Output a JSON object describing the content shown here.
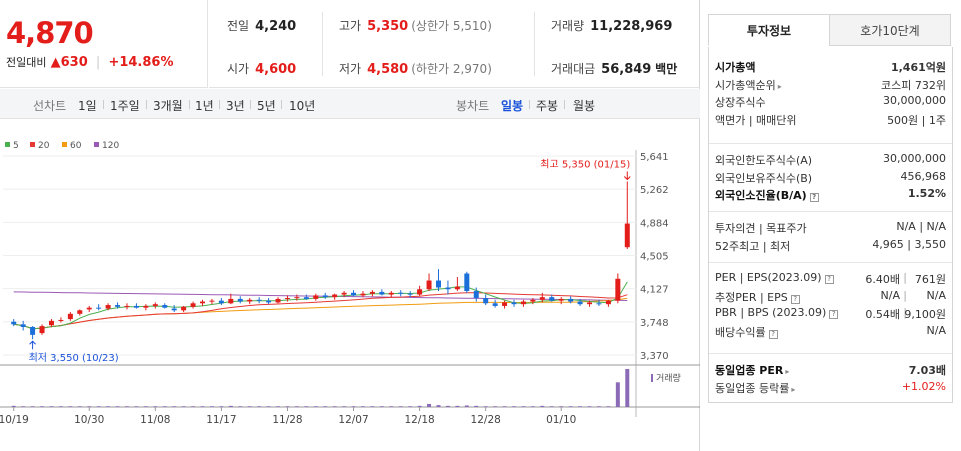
{
  "price": {
    "current": "4,870",
    "change_label": "전일대비",
    "change_arrow": "▲",
    "change_value": "630",
    "change_pct": "+14.86%"
  },
  "stats": {
    "prev_close_label": "전일",
    "prev_close": "4,240",
    "high_label": "고가",
    "high": "5,350",
    "upper_limit": "(상한가 5,510)",
    "volume_label": "거래량",
    "volume": "11,228,969",
    "open_label": "시가",
    "open": "4,600",
    "low_label": "저가",
    "low": "4,580",
    "lower_limit": "(하한가 2,970)",
    "turnover_label": "거래대금",
    "turnover": "56,849",
    "turnover_unit": "백만"
  },
  "toolbar": {
    "line_label": "선차트",
    "periods": [
      "1일",
      "1주일",
      "3개월",
      "1년",
      "3년",
      "5년",
      "10년"
    ],
    "candle_label": "봉차트",
    "candles": [
      "일봉",
      "주봉",
      "월봉"
    ],
    "active_candle": "일봉"
  },
  "chart_data": {
    "type": "candlestick",
    "legend": [
      {
        "name": "5",
        "color": "#4caf50"
      },
      {
        "name": "20",
        "color": "#e53935"
      },
      {
        "name": "60",
        "color": "#f39c12"
      },
      {
        "name": "120",
        "color": "#9b59b6"
      }
    ],
    "ylim": [
      3370,
      5641
    ],
    "yticks": [
      "5,641",
      "5,262",
      "4,884",
      "4,505",
      "4,127",
      "3,748",
      "3,370"
    ],
    "xticks": [
      "10/19",
      "10/30",
      "11/08",
      "11/17",
      "11/28",
      "12/07",
      "12/18",
      "12/28",
      "01/10"
    ],
    "annotations": {
      "high": "최고 5,350 (01/15)",
      "low": "최저 3,550 (10/23)"
    },
    "volume_label": "거래량",
    "up_color": "#e31d1a",
    "down_color": "#1a6fd9",
    "candles": [
      {
        "o": 3750,
        "h": 3780,
        "l": 3700,
        "c": 3720
      },
      {
        "o": 3720,
        "h": 3760,
        "l": 3650,
        "c": 3690
      },
      {
        "o": 3690,
        "h": 3700,
        "l": 3550,
        "c": 3600
      },
      {
        "o": 3620,
        "h": 3720,
        "l": 3600,
        "c": 3700
      },
      {
        "o": 3710,
        "h": 3780,
        "l": 3690,
        "c": 3760
      },
      {
        "o": 3760,
        "h": 3800,
        "l": 3740,
        "c": 3770
      },
      {
        "o": 3780,
        "h": 3860,
        "l": 3760,
        "c": 3840
      },
      {
        "o": 3840,
        "h": 3890,
        "l": 3820,
        "c": 3880
      },
      {
        "o": 3890,
        "h": 3930,
        "l": 3860,
        "c": 3910
      },
      {
        "o": 3910,
        "h": 3950,
        "l": 3880,
        "c": 3900
      },
      {
        "o": 3900,
        "h": 3960,
        "l": 3880,
        "c": 3940
      },
      {
        "o": 3940,
        "h": 3970,
        "l": 3900,
        "c": 3920
      },
      {
        "o": 3920,
        "h": 3960,
        "l": 3890,
        "c": 3930
      },
      {
        "o": 3930,
        "h": 3960,
        "l": 3900,
        "c": 3910
      },
      {
        "o": 3910,
        "h": 3950,
        "l": 3880,
        "c": 3930
      },
      {
        "o": 3930,
        "h": 3970,
        "l": 3900,
        "c": 3950
      },
      {
        "o": 3940,
        "h": 3960,
        "l": 3900,
        "c": 3910
      },
      {
        "o": 3900,
        "h": 3940,
        "l": 3860,
        "c": 3880
      },
      {
        "o": 3880,
        "h": 3930,
        "l": 3860,
        "c": 3920
      },
      {
        "o": 3920,
        "h": 3980,
        "l": 3900,
        "c": 3960
      },
      {
        "o": 3960,
        "h": 4000,
        "l": 3930,
        "c": 3980
      },
      {
        "o": 3980,
        "h": 4010,
        "l": 3950,
        "c": 3990
      },
      {
        "o": 3990,
        "h": 4020,
        "l": 3940,
        "c": 3960
      },
      {
        "o": 3960,
        "h": 4070,
        "l": 3950,
        "c": 4010
      },
      {
        "o": 4010,
        "h": 4040,
        "l": 3960,
        "c": 3980
      },
      {
        "o": 3980,
        "h": 4020,
        "l": 3950,
        "c": 4000
      },
      {
        "o": 4000,
        "h": 4030,
        "l": 3960,
        "c": 3990
      },
      {
        "o": 3990,
        "h": 4020,
        "l": 3950,
        "c": 3970
      },
      {
        "o": 3970,
        "h": 4030,
        "l": 3960,
        "c": 4010
      },
      {
        "o": 4010,
        "h": 4050,
        "l": 3980,
        "c": 4020
      },
      {
        "o": 4020,
        "h": 4060,
        "l": 3990,
        "c": 4030
      },
      {
        "o": 4030,
        "h": 4060,
        "l": 4000,
        "c": 4010
      },
      {
        "o": 4010,
        "h": 4070,
        "l": 3990,
        "c": 4050
      },
      {
        "o": 4050,
        "h": 4080,
        "l": 4010,
        "c": 4030
      },
      {
        "o": 4030,
        "h": 4070,
        "l": 4000,
        "c": 4060
      },
      {
        "o": 4060,
        "h": 4100,
        "l": 4030,
        "c": 4080
      },
      {
        "o": 4080,
        "h": 4110,
        "l": 4040,
        "c": 4050
      },
      {
        "o": 4050,
        "h": 4100,
        "l": 4030,
        "c": 4070
      },
      {
        "o": 4070,
        "h": 4110,
        "l": 4040,
        "c": 4090
      },
      {
        "o": 4090,
        "h": 4120,
        "l": 4050,
        "c": 4060
      },
      {
        "o": 4060,
        "h": 4100,
        "l": 4030,
        "c": 4080
      },
      {
        "o": 4080,
        "h": 4110,
        "l": 4040,
        "c": 4070
      },
      {
        "o": 4070,
        "h": 4100,
        "l": 4030,
        "c": 4060
      },
      {
        "o": 4060,
        "h": 4160,
        "l": 4040,
        "c": 4120
      },
      {
        "o": 4120,
        "h": 4300,
        "l": 4100,
        "c": 4220
      },
      {
        "o": 4220,
        "h": 4350,
        "l": 4100,
        "c": 4140
      },
      {
        "o": 4140,
        "h": 4220,
        "l": 4060,
        "c": 4120
      },
      {
        "o": 4120,
        "h": 4260,
        "l": 4100,
        "c": 4150
      },
      {
        "o": 4300,
        "h": 4320,
        "l": 4080,
        "c": 4100
      },
      {
        "o": 4100,
        "h": 4140,
        "l": 3980,
        "c": 4020
      },
      {
        "o": 4020,
        "h": 4060,
        "l": 3940,
        "c": 3960
      },
      {
        "o": 3960,
        "h": 4000,
        "l": 3910,
        "c": 3930
      },
      {
        "o": 3930,
        "h": 3990,
        "l": 3900,
        "c": 3970
      },
      {
        "o": 3970,
        "h": 4000,
        "l": 3920,
        "c": 3950
      },
      {
        "o": 3950,
        "h": 4000,
        "l": 3920,
        "c": 3980
      },
      {
        "o": 3980,
        "h": 4020,
        "l": 3950,
        "c": 4000
      },
      {
        "o": 4000,
        "h": 4080,
        "l": 3970,
        "c": 4030
      },
      {
        "o": 4030,
        "h": 4060,
        "l": 3980,
        "c": 3990
      },
      {
        "o": 3990,
        "h": 4030,
        "l": 3950,
        "c": 4010
      },
      {
        "o": 4010,
        "h": 4040,
        "l": 3960,
        "c": 3980
      },
      {
        "o": 3980,
        "h": 4010,
        "l": 3930,
        "c": 3950
      },
      {
        "o": 3950,
        "h": 3990,
        "l": 3920,
        "c": 3970
      },
      {
        "o": 3960,
        "h": 4000,
        "l": 3930,
        "c": 3950
      },
      {
        "o": 3950,
        "h": 4000,
        "l": 3920,
        "c": 3990
      },
      {
        "o": 3990,
        "h": 4300,
        "l": 3960,
        "c": 4240
      },
      {
        "o": 4600,
        "h": 5350,
        "l": 4580,
        "c": 4870
      }
    ],
    "volume": [
      0.03,
      0.02,
      0.02,
      0.02,
      0.02,
      0.02,
      0.02,
      0.02,
      0.02,
      0.02,
      0.02,
      0.02,
      0.02,
      0.02,
      0.02,
      0.02,
      0.02,
      0.02,
      0.02,
      0.02,
      0.02,
      0.02,
      0.02,
      0.03,
      0.02,
      0.02,
      0.02,
      0.02,
      0.02,
      0.02,
      0.02,
      0.02,
      0.02,
      0.02,
      0.02,
      0.02,
      0.02,
      0.02,
      0.02,
      0.02,
      0.02,
      0.02,
      0.02,
      0.03,
      0.08,
      0.05,
      0.03,
      0.03,
      0.04,
      0.03,
      0.02,
      0.02,
      0.02,
      0.02,
      0.02,
      0.02,
      0.03,
      0.02,
      0.02,
      0.02,
      0.02,
      0.02,
      0.02,
      0.02,
      0.65,
      1.0
    ]
  },
  "info": {
    "tabs": [
      "투자정보",
      "호가10단계"
    ],
    "rows1": [
      {
        "k": "시가총액",
        "v": "1,461억원",
        "kb": true,
        "vb": true
      },
      {
        "k": "시가총액순위",
        "v": "코스피 732위",
        "caret": true
      },
      {
        "k": "상장주식수",
        "v": "30,000,000"
      },
      {
        "k": "액면가 | 매매단위",
        "v": "500원 | 1주"
      }
    ],
    "rows2": [
      {
        "k": "외국인한도주식수(A)",
        "v": "30,000,000"
      },
      {
        "k": "외국인보유주식수(B)",
        "v": "456,968"
      },
      {
        "k": "외국인소진율(B/A)",
        "v": "1.52%",
        "kb": true,
        "vb": true,
        "q": true
      }
    ],
    "rows3": [
      {
        "k": "투자의견 | 목표주가",
        "v": "N/A | N/A"
      },
      {
        "k": "52주최고 | 최저",
        "v": "4,965 | 3,550"
      }
    ],
    "rows4": [
      {
        "k": "PER | EPS(2023.09)",
        "v1": "6.40배",
        "v": "761원",
        "q": true
      },
      {
        "k": "추정PER | EPS",
        "v1": "N/A",
        "v": "N/A",
        "q": true
      },
      {
        "k": "PBR | BPS (2023.09)",
        "v1": "0.54배",
        "v": "9,100원",
        "q": true
      },
      {
        "k": "배당수익률",
        "v": "N/A",
        "q": true
      }
    ],
    "rows5": [
      {
        "k": "동일업종 PER",
        "v": "7.03배",
        "kb": true,
        "vb": true,
        "caret": true
      },
      {
        "k": "동일업종 등락률",
        "v": "+1.02%",
        "caret": true,
        "red": true
      }
    ]
  }
}
